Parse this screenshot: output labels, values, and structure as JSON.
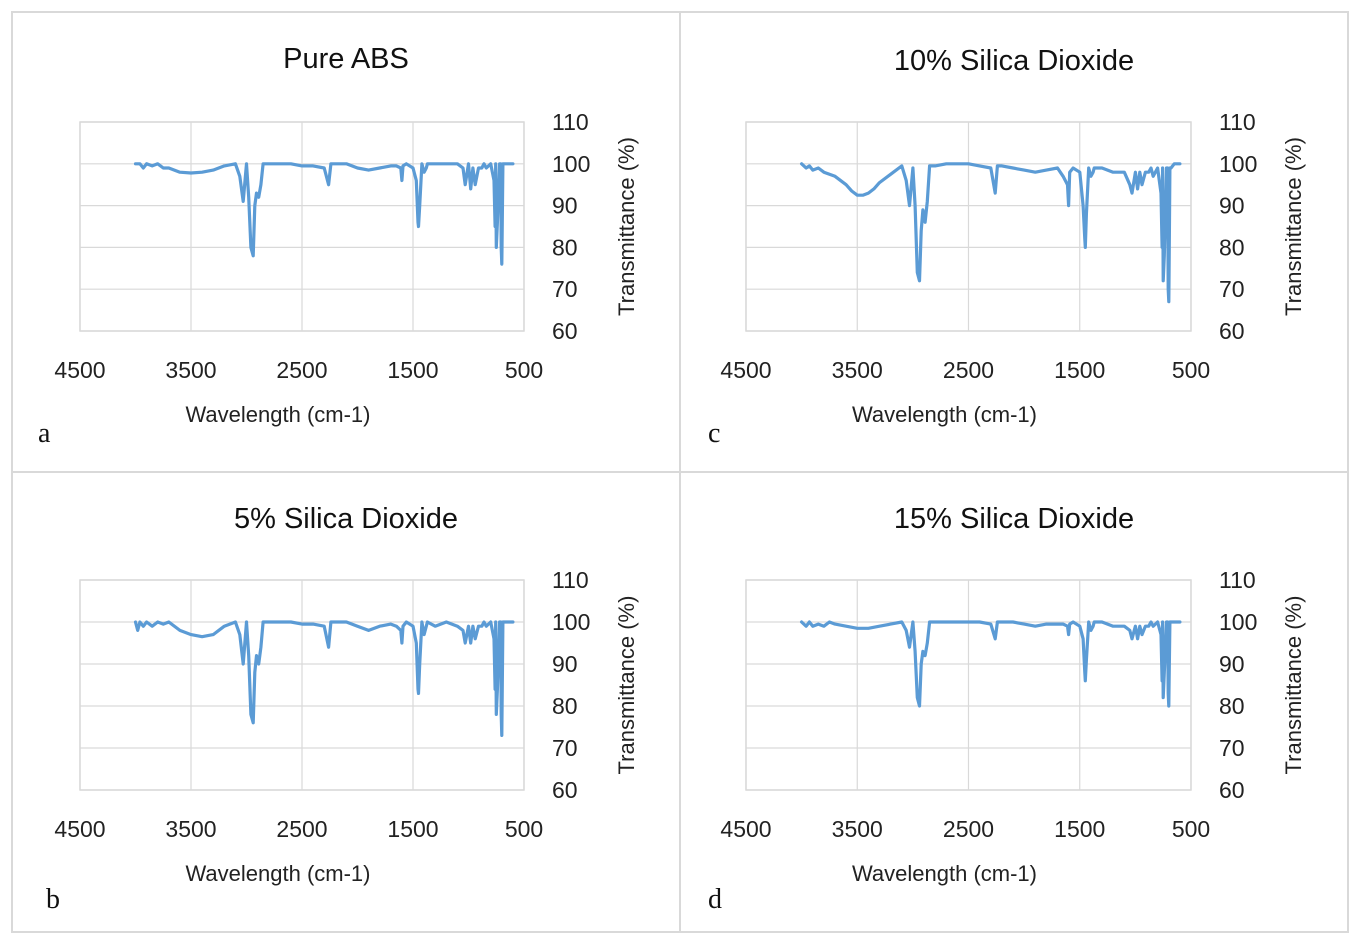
{
  "chart_data": [
    {
      "type": "line",
      "panel_label": "a",
      "title": "Pure ABS",
      "xlabel": "Wavelength (cm-1)",
      "ylabel": "Transmittance (%)",
      "xlim": [
        4500,
        500
      ],
      "ylim": [
        60,
        110
      ],
      "xticks": [
        "4500",
        "3500",
        "2500",
        "1500",
        "500"
      ],
      "yticks": [
        "60",
        "70",
        "80",
        "90",
        "100",
        "110"
      ],
      "series": [
        {
          "name": "Pure ABS",
          "x": [
            4000,
            3960,
            3930,
            3900,
            3850,
            3800,
            3750,
            3700,
            3600,
            3500,
            3400,
            3300,
            3200,
            3100,
            3060,
            3030,
            3000,
            2980,
            2960,
            2940,
            2925,
            2910,
            2890,
            2870,
            2850,
            2830,
            2800,
            2700,
            2600,
            2500,
            2400,
            2300,
            2260,
            2240,
            2220,
            2200,
            2100,
            2000,
            1900,
            1800,
            1700,
            1650,
            1610,
            1600,
            1590,
            1560,
            1500,
            1470,
            1455,
            1450,
            1440,
            1420,
            1400,
            1380,
            1370,
            1300,
            1200,
            1100,
            1050,
            1030,
            1000,
            980,
            960,
            940,
            910,
            880,
            860,
            840,
            800,
            770,
            760,
            755,
            750,
            740,
            720,
            710,
            705,
            700,
            698,
            690,
            680,
            650,
            600
          ],
          "values": [
            100,
            100,
            99,
            100,
            99.5,
            100,
            99,
            99,
            98,
            97.8,
            98,
            98.5,
            99.5,
            100,
            97,
            91,
            100,
            92,
            80,
            78,
            90,
            93,
            92,
            95,
            100,
            100,
            100,
            100,
            100,
            99.5,
            99.5,
            99,
            95,
            100,
            100,
            100,
            100,
            99,
            98.5,
            99,
            99.5,
            99.5,
            99,
            96,
            99.5,
            100,
            99,
            96,
            86,
            85,
            90,
            100,
            98,
            99,
            100,
            100,
            100,
            100,
            99,
            95,
            100,
            94,
            99,
            95,
            99,
            99,
            100,
            99,
            100,
            96,
            85,
            100,
            80,
            86,
            100,
            100,
            80,
            76,
            80,
            100,
            100,
            100,
            100
          ]
        }
      ]
    },
    {
      "type": "line",
      "panel_label": "b",
      "title": "5% Silica Dioxide",
      "xlabel": "Wavelength (cm-1)",
      "ylabel": "Transmittance (%)",
      "xlim": [
        4500,
        500
      ],
      "ylim": [
        60,
        110
      ],
      "xticks": [
        "4500",
        "3500",
        "2500",
        "1500",
        "500"
      ],
      "yticks": [
        "60",
        "70",
        "80",
        "90",
        "100",
        "110"
      ],
      "series": [
        {
          "name": "5% Silica Dioxide",
          "x": [
            4000,
            3980,
            3960,
            3930,
            3900,
            3850,
            3800,
            3750,
            3700,
            3600,
            3500,
            3400,
            3300,
            3200,
            3100,
            3060,
            3030,
            3000,
            2980,
            2960,
            2940,
            2925,
            2910,
            2890,
            2870,
            2850,
            2830,
            2800,
            2700,
            2600,
            2500,
            2400,
            2300,
            2260,
            2240,
            2220,
            2200,
            2100,
            2000,
            1900,
            1800,
            1700,
            1650,
            1610,
            1600,
            1590,
            1560,
            1500,
            1470,
            1455,
            1450,
            1440,
            1420,
            1400,
            1380,
            1370,
            1300,
            1200,
            1100,
            1050,
            1030,
            1000,
            980,
            960,
            940,
            910,
            880,
            860,
            840,
            800,
            770,
            760,
            755,
            750,
            740,
            720,
            710,
            705,
            700,
            698,
            690,
            680,
            650,
            600
          ],
          "values": [
            100,
            98,
            100,
            99,
            100,
            99,
            100,
            99.5,
            100,
            98,
            97,
            96.5,
            97,
            99,
            100,
            97,
            90,
            100,
            92,
            78,
            76,
            88,
            92,
            90,
            94,
            100,
            100,
            100,
            100,
            100,
            99.5,
            99.5,
            99,
            94,
            100,
            100,
            100,
            100,
            99,
            98,
            99,
            99.5,
            99,
            98,
            95,
            99,
            100,
            99,
            95,
            84,
            83,
            90,
            100,
            97,
            99,
            100,
            99,
            100,
            99,
            98,
            95,
            99,
            95,
            99,
            96,
            99,
            99,
            100,
            99,
            100,
            96,
            84,
            100,
            78,
            84,
            100,
            100,
            78,
            73,
            78,
            100,
            100,
            100,
            100
          ]
        }
      ]
    },
    {
      "type": "line",
      "panel_label": "c",
      "title": "10% Silica Dioxide",
      "xlabel": "Wavelength (cm-1)",
      "ylabel": "Transmittance (%)",
      "xlim": [
        4500,
        500
      ],
      "ylim": [
        60,
        110
      ],
      "xticks": [
        "4500",
        "3500",
        "2500",
        "1500",
        "500"
      ],
      "yticks": [
        "60",
        "70",
        "80",
        "90",
        "100",
        "110"
      ],
      "series": [
        {
          "name": "10% Silica Dioxide",
          "x": [
            4000,
            3960,
            3930,
            3900,
            3850,
            3800,
            3700,
            3600,
            3550,
            3500,
            3450,
            3400,
            3350,
            3300,
            3200,
            3100,
            3060,
            3030,
            3000,
            2980,
            2960,
            2940,
            2925,
            2910,
            2890,
            2870,
            2850,
            2830,
            2800,
            2700,
            2600,
            2500,
            2400,
            2300,
            2260,
            2240,
            2220,
            2200,
            2100,
            2000,
            1900,
            1800,
            1700,
            1650,
            1610,
            1600,
            1590,
            1560,
            1500,
            1470,
            1455,
            1450,
            1440,
            1420,
            1400,
            1380,
            1370,
            1300,
            1200,
            1100,
            1050,
            1030,
            1000,
            980,
            960,
            940,
            910,
            880,
            860,
            840,
            800,
            770,
            760,
            755,
            750,
            740,
            720,
            710,
            705,
            700,
            698,
            690,
            680,
            650,
            600
          ],
          "values": [
            100,
            99,
            99.5,
            98.5,
            99,
            98,
            97,
            95,
            93.5,
            92.5,
            92.5,
            93,
            94,
            95.5,
            97.5,
            99.5,
            96,
            90,
            99,
            90,
            74,
            72,
            84,
            89,
            86,
            91,
            99.5,
            99.5,
            99.5,
            100,
            100,
            100,
            99.5,
            99,
            93,
            99.5,
            99.5,
            99.5,
            99,
            98.5,
            98,
            98.5,
            99,
            97,
            95,
            90,
            98,
            99,
            98,
            90,
            82,
            80,
            88,
            99,
            97,
            98,
            99,
            99,
            98,
            98,
            95,
            93,
            98,
            94,
            98,
            95,
            98,
            98,
            99,
            97,
            99,
            93,
            80,
            99,
            72,
            78,
            99,
            99,
            70,
            67,
            72,
            99,
            99,
            100,
            100
          ]
        }
      ]
    },
    {
      "type": "line",
      "panel_label": "d",
      "title": "15% Silica Dioxide",
      "xlabel": "Wavelength (cm-1)",
      "ylabel": "Transmittance (%)",
      "xlim": [
        4500,
        500
      ],
      "ylim": [
        60,
        110
      ],
      "xticks": [
        "4500",
        "3500",
        "2500",
        "1500",
        "500"
      ],
      "yticks": [
        "60",
        "70",
        "80",
        "90",
        "100",
        "110"
      ],
      "series": [
        {
          "name": "15% Silica Dioxide",
          "x": [
            4000,
            3960,
            3930,
            3900,
            3850,
            3800,
            3750,
            3700,
            3600,
            3500,
            3400,
            3300,
            3200,
            3100,
            3060,
            3030,
            3000,
            2980,
            2960,
            2940,
            2925,
            2910,
            2890,
            2870,
            2850,
            2830,
            2800,
            2700,
            2600,
            2500,
            2400,
            2300,
            2260,
            2240,
            2220,
            2200,
            2100,
            2000,
            1900,
            1800,
            1700,
            1650,
            1610,
            1600,
            1590,
            1560,
            1500,
            1470,
            1455,
            1450,
            1440,
            1420,
            1400,
            1380,
            1370,
            1300,
            1200,
            1100,
            1050,
            1030,
            1000,
            980,
            960,
            940,
            910,
            880,
            860,
            840,
            800,
            770,
            760,
            755,
            750,
            740,
            720,
            710,
            705,
            700,
            698,
            690,
            680,
            650,
            600
          ],
          "values": [
            100,
            99,
            100,
            99,
            99.5,
            99,
            100,
            99.5,
            99,
            98.5,
            98.5,
            99,
            99.5,
            100,
            98,
            94,
            100,
            93,
            82,
            80,
            90,
            93,
            92,
            95,
            100,
            100,
            100,
            100,
            100,
            100,
            100,
            99.5,
            96,
            100,
            100,
            100,
            100,
            99.5,
            99,
            99.5,
            99.5,
            99.5,
            99,
            97,
            99.5,
            100,
            99,
            96,
            88,
            86,
            91,
            100,
            98,
            99,
            100,
            100,
            99,
            99,
            98,
            96,
            99,
            96,
            99,
            97,
            99,
            99,
            100,
            99,
            100,
            97,
            86,
            100,
            82,
            88,
            100,
            100,
            83,
            80,
            84,
            100,
            100,
            100,
            100
          ]
        }
      ]
    }
  ]
}
